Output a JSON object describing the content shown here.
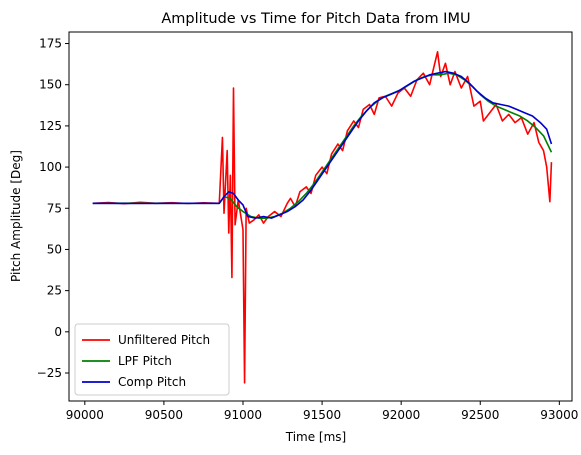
{
  "chart_data": {
    "type": "line",
    "title": "Amplitude vs Time for Pitch Data from IMU",
    "xlabel": "Time [ms]",
    "ylabel": "Pitch Amplitude [Deg]",
    "xlim": [
      89900,
      93080
    ],
    "ylim": [
      -42,
      182
    ],
    "xticks": [
      90000,
      90500,
      91000,
      91500,
      92000,
      92500,
      93000
    ],
    "yticks": [
      -25,
      0,
      25,
      50,
      75,
      100,
      125,
      150,
      175
    ],
    "grid": false,
    "legend_position": "lower-left",
    "series": [
      {
        "name": "Unfiltered Pitch",
        "color": "#ff0000",
        "points": [
          [
            90050,
            78
          ],
          [
            90150,
            78.5
          ],
          [
            90250,
            77.8
          ],
          [
            90350,
            78.6
          ],
          [
            90450,
            78
          ],
          [
            90550,
            78.4
          ],
          [
            90650,
            77.9
          ],
          [
            90750,
            78.3
          ],
          [
            90850,
            78
          ],
          [
            90870,
            118
          ],
          [
            90880,
            72
          ],
          [
            90900,
            110
          ],
          [
            90910,
            60
          ],
          [
            90920,
            95
          ],
          [
            90930,
            33
          ],
          [
            90940,
            148
          ],
          [
            90950,
            65
          ],
          [
            90970,
            80
          ],
          [
            91000,
            62
          ],
          [
            91010,
            -31
          ],
          [
            91020,
            75
          ],
          [
            91040,
            66
          ],
          [
            91070,
            68
          ],
          [
            91100,
            71
          ],
          [
            91130,
            66
          ],
          [
            91160,
            70
          ],
          [
            91200,
            73
          ],
          [
            91240,
            70
          ],
          [
            91280,
            78
          ],
          [
            91300,
            81
          ],
          [
            91330,
            76
          ],
          [
            91360,
            85
          ],
          [
            91400,
            88
          ],
          [
            91430,
            84
          ],
          [
            91460,
            95
          ],
          [
            91500,
            100
          ],
          [
            91530,
            96
          ],
          [
            91560,
            108
          ],
          [
            91600,
            114
          ],
          [
            91630,
            110
          ],
          [
            91660,
            122
          ],
          [
            91700,
            128
          ],
          [
            91730,
            124
          ],
          [
            91760,
            135
          ],
          [
            91800,
            138
          ],
          [
            91830,
            132
          ],
          [
            91860,
            142
          ],
          [
            91900,
            143
          ],
          [
            91940,
            137
          ],
          [
            91980,
            145
          ],
          [
            92020,
            148
          ],
          [
            92060,
            143
          ],
          [
            92100,
            153
          ],
          [
            92140,
            157
          ],
          [
            92180,
            150
          ],
          [
            92210,
            162
          ],
          [
            92230,
            170
          ],
          [
            92250,
            155
          ],
          [
            92280,
            163
          ],
          [
            92310,
            150
          ],
          [
            92340,
            158
          ],
          [
            92380,
            148
          ],
          [
            92420,
            155
          ],
          [
            92460,
            137
          ],
          [
            92500,
            140
          ],
          [
            92520,
            128
          ],
          [
            92560,
            133
          ],
          [
            92600,
            138
          ],
          [
            92640,
            128
          ],
          [
            92680,
            132
          ],
          [
            92720,
            127
          ],
          [
            92760,
            130
          ],
          [
            92800,
            120
          ],
          [
            92840,
            127
          ],
          [
            92870,
            115
          ],
          [
            92900,
            110
          ],
          [
            92920,
            100
          ],
          [
            92940,
            79
          ],
          [
            92950,
            103
          ]
        ]
      },
      {
        "name": "LPF Pitch",
        "color": "#008000",
        "points": [
          [
            90050,
            78
          ],
          [
            90300,
            78.1
          ],
          [
            90600,
            78
          ],
          [
            90850,
            78
          ],
          [
            90880,
            82
          ],
          [
            90920,
            81
          ],
          [
            90960,
            76
          ],
          [
            91000,
            73
          ],
          [
            91050,
            70
          ],
          [
            91100,
            69
          ],
          [
            91150,
            69
          ],
          [
            91200,
            70
          ],
          [
            91250,
            72
          ],
          [
            91300,
            75
          ],
          [
            91350,
            79
          ],
          [
            91400,
            84
          ],
          [
            91450,
            90
          ],
          [
            91500,
            97
          ],
          [
            91550,
            104
          ],
          [
            91600,
            111
          ],
          [
            91650,
            118
          ],
          [
            91700,
            125
          ],
          [
            91750,
            131
          ],
          [
            91800,
            136
          ],
          [
            91850,
            140
          ],
          [
            91900,
            143
          ],
          [
            91950,
            145
          ],
          [
            92000,
            147
          ],
          [
            92050,
            150
          ],
          [
            92100,
            153
          ],
          [
            92150,
            155
          ],
          [
            92200,
            156
          ],
          [
            92250,
            156
          ],
          [
            92300,
            157
          ],
          [
            92350,
            156
          ],
          [
            92400,
            153
          ],
          [
            92450,
            149
          ],
          [
            92500,
            144
          ],
          [
            92550,
            140
          ],
          [
            92600,
            137
          ],
          [
            92650,
            135
          ],
          [
            92700,
            133
          ],
          [
            92750,
            131
          ],
          [
            92800,
            128
          ],
          [
            92850,
            124
          ],
          [
            92900,
            119
          ],
          [
            92950,
            109
          ]
        ]
      },
      {
        "name": "Comp Pitch",
        "color": "#0000cc",
        "points": [
          [
            90050,
            78
          ],
          [
            90300,
            77.9
          ],
          [
            90600,
            78
          ],
          [
            90850,
            78
          ],
          [
            90880,
            82
          ],
          [
            90910,
            85
          ],
          [
            90940,
            84
          ],
          [
            90970,
            80
          ],
          [
            91000,
            77
          ],
          [
            91030,
            70
          ],
          [
            91080,
            69
          ],
          [
            91130,
            70
          ],
          [
            91180,
            69
          ],
          [
            91230,
            71
          ],
          [
            91280,
            73
          ],
          [
            91330,
            76
          ],
          [
            91380,
            80
          ],
          [
            91430,
            86
          ],
          [
            91480,
            93
          ],
          [
            91530,
            100
          ],
          [
            91580,
            107
          ],
          [
            91630,
            114
          ],
          [
            91680,
            121
          ],
          [
            91730,
            128
          ],
          [
            91780,
            134
          ],
          [
            91830,
            139
          ],
          [
            91880,
            142
          ],
          [
            91930,
            144
          ],
          [
            91980,
            146
          ],
          [
            92030,
            149
          ],
          [
            92080,
            152
          ],
          [
            92130,
            154
          ],
          [
            92180,
            156
          ],
          [
            92230,
            157
          ],
          [
            92280,
            158
          ],
          [
            92330,
            157
          ],
          [
            92380,
            155
          ],
          [
            92430,
            151
          ],
          [
            92480,
            146
          ],
          [
            92530,
            142
          ],
          [
            92580,
            139
          ],
          [
            92630,
            138
          ],
          [
            92680,
            137
          ],
          [
            92730,
            135
          ],
          [
            92780,
            133
          ],
          [
            92830,
            131
          ],
          [
            92880,
            127
          ],
          [
            92920,
            123
          ],
          [
            92950,
            114
          ]
        ]
      }
    ]
  }
}
